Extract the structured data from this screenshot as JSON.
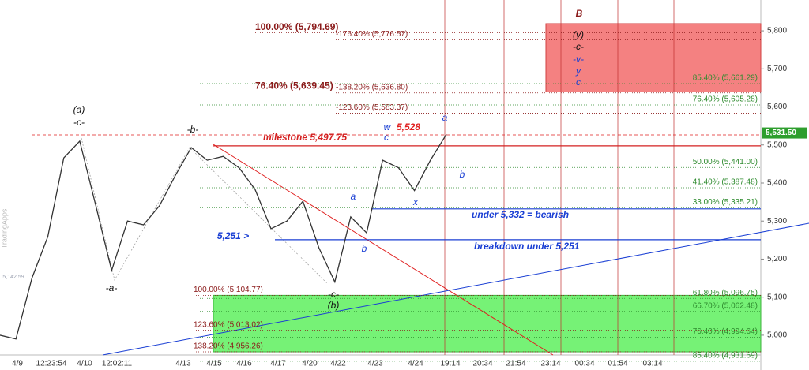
{
  "chart_data": {
    "type": "line",
    "watermark": "TradingApps",
    "ylim": [
      4948,
      5881
    ],
    "yticks": [
      {
        "value": 5000,
        "label": "5,000"
      },
      {
        "value": 5100,
        "label": "5,100"
      },
      {
        "value": 5200,
        "label": "5,200"
      },
      {
        "value": 5300,
        "label": "5,300"
      },
      {
        "value": 5400,
        "label": "5,400"
      },
      {
        "value": 5500,
        "label": "5,500"
      },
      {
        "value": 5600,
        "label": "5,600"
      },
      {
        "value": 5700,
        "label": "5,700"
      },
      {
        "value": 5800,
        "label": "5,800"
      }
    ],
    "x_labels": [
      "4/9",
      "12:23:54",
      "4/10",
      "12:02:11",
      "4/13",
      "4/15",
      "4/16",
      "4/17",
      "4/20",
      "4/22",
      "4/23",
      "4/24",
      "19:14",
      "20:34",
      "21:54",
      "23:14",
      "00:34",
      "01:54",
      "03:14"
    ],
    "series": [
      {
        "name": "price",
        "color": "#333333",
        "values": [
          5000,
          4990,
          5150,
          5259,
          5466,
          5510,
          5342,
          5170,
          5300,
          5290,
          5340,
          5420,
          5493,
          5460,
          5470,
          5440,
          5383,
          5280,
          5300,
          5352,
          5230,
          5140,
          5311,
          5269,
          5460,
          5440,
          5380,
          5460,
          5528
        ]
      }
    ],
    "last_price": {
      "value": 5531.5,
      "label": "5,531.50"
    },
    "levels": [
      {
        "label": "85.40% (5,661.29)",
        "value": 5661.29,
        "color": "#2e8b2e"
      },
      {
        "label": "76.40% (5,605.28)",
        "value": 5605.28,
        "color": "#2e8b2e"
      },
      {
        "label": "50.00% (5,441.00)",
        "value": 5441.0,
        "color": "#2e8b2e"
      },
      {
        "label": "41.40% (5,387.48)",
        "value": 5387.48,
        "color": "#2e8b2e"
      },
      {
        "label": "33.00% (5,335.21)",
        "value": 5335.21,
        "color": "#2e8b2e"
      },
      {
        "label": "61.80% (5,096.75)",
        "value": 5096.75,
        "color": "#2e8b2e"
      },
      {
        "label": "66.70% (5,062.48)",
        "value": 5062.48,
        "color": "#2e8b2e"
      },
      {
        "label": "76.40% (4,994.64)",
        "value": 4994.64,
        "color": "#2e8b2e"
      },
      {
        "label": "85.40% (4,931.69)",
        "value": 4931.69,
        "color": "#2e8b2e"
      },
      {
        "label": "100.00% (5,794.69)",
        "value": 5794.69,
        "color": "#8b1a1a"
      },
      {
        "label": "-176.40% (5,776.57)",
        "value": 5776.57,
        "color": "#8b1a1a"
      },
      {
        "label": "76.40% (5,639.45)",
        "value": 5639.45,
        "color": "#8b1a1a"
      },
      {
        "label": "-138.20% (5,636.80)",
        "value": 5636.8,
        "color": "#8b1a1a"
      },
      {
        "label": "-123.60% (5,583.37)",
        "value": 5583.37,
        "color": "#8b1a1a"
      },
      {
        "label": "100.00% (5,104.77)",
        "value": 5104.77,
        "color": "#8b1a1a"
      },
      {
        "label": "123.60% (5,013.02)",
        "value": 5013.02,
        "color": "#8b1a1a"
      },
      {
        "label": "138.20% (4,956.26)",
        "value": 4956.26,
        "color": "#8b1a1a"
      }
    ],
    "horizontal_lines": [
      {
        "text": "milestone 5,497.75",
        "value": 5497.75,
        "color": "#d42020"
      },
      {
        "text": "under 5,332 = bearish",
        "value": 5332,
        "color": "#1a3fd4"
      },
      {
        "text": "breakdown under 5,251",
        "value": 5251,
        "color": "#1a3fd4"
      }
    ],
    "annotations": [
      {
        "text": "(a)",
        "color": "#111111"
      },
      {
        "text": "-c-",
        "color": "#111111"
      },
      {
        "text": "-b-",
        "color": "#111111"
      },
      {
        "text": "-a-",
        "color": "#111111"
      },
      {
        "text": "-c-",
        "color": "#111111"
      },
      {
        "text": "(b)",
        "color": "#111111"
      },
      {
        "text": "5,528",
        "color": "#e02020"
      },
      {
        "text": "w",
        "color": "#1a3fd4"
      },
      {
        "text": "c",
        "color": "#1a3fd4"
      },
      {
        "text": "a",
        "color": "#1a3fd4"
      },
      {
        "text": "b",
        "color": "#1a3fd4"
      },
      {
        "text": "x",
        "color": "#1a3fd4"
      },
      {
        "text": "a",
        "color": "#1a3fd4"
      },
      {
        "text": "b",
        "color": "#1a3fd4"
      },
      {
        "text": "5,251 >",
        "color": "#1a3fd4"
      },
      {
        "text": "B",
        "color": "#8b1a1a"
      },
      {
        "text": "(y)",
        "color": "#111111"
      },
      {
        "text": "-c-",
        "color": "#111111"
      },
      {
        "text": "-v-",
        "color": "#1a3fd4"
      },
      {
        "text": "y",
        "color": "#1a3fd4"
      },
      {
        "text": "c",
        "color": "#1a3fd4"
      },
      {
        "text": "5,142.59",
        "color": "#9aa0b0"
      }
    ]
  }
}
